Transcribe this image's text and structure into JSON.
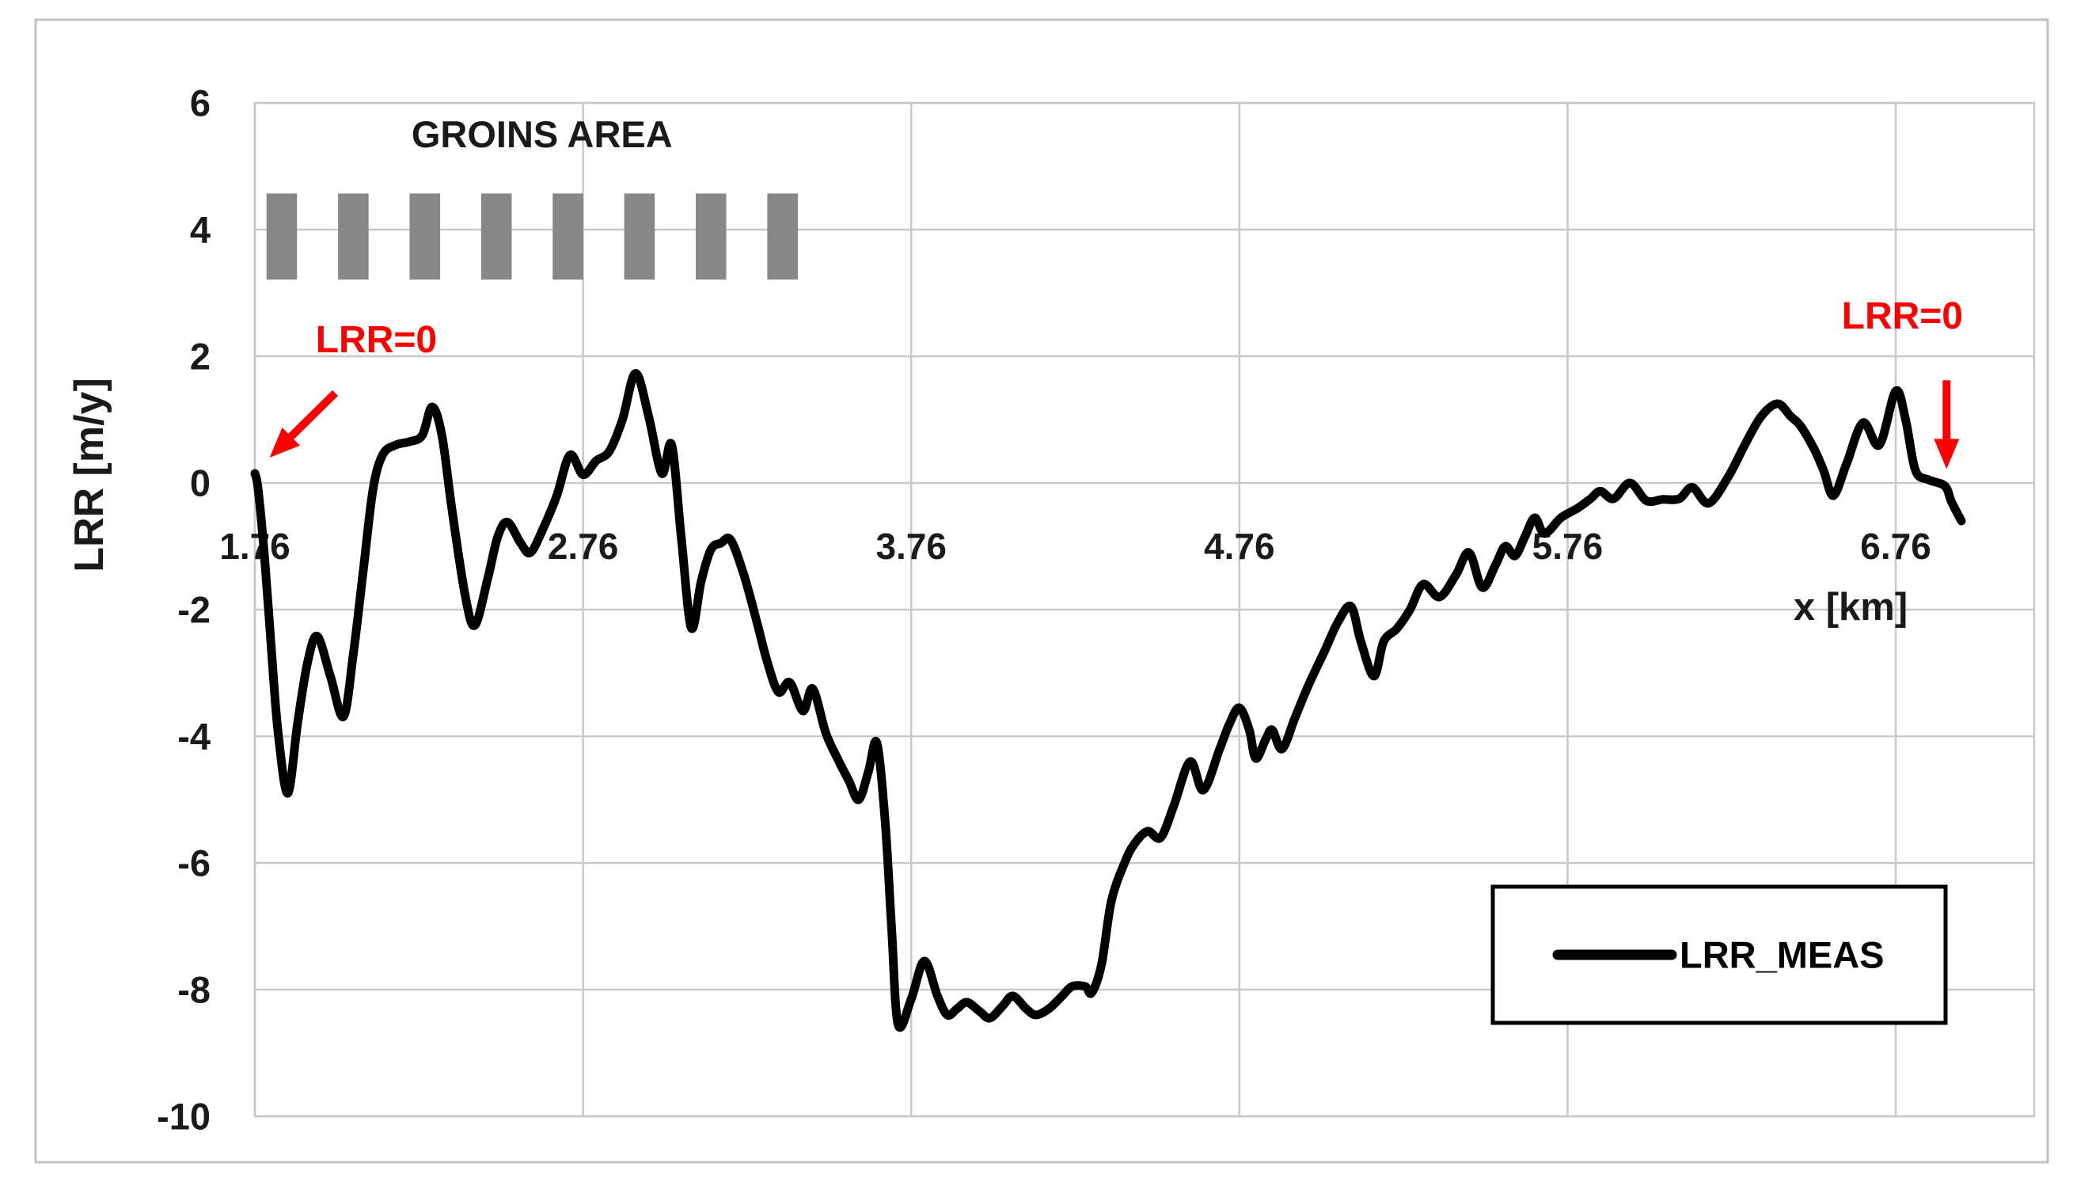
{
  "chart_data": {
    "type": "line",
    "title": "",
    "xlabel": "x [km]",
    "ylabel": "LRR [m/y]",
    "xlim": [
      1.76,
      7.182
    ],
    "ylim": [
      -10,
      6
    ],
    "x_ticks": [
      "1.76",
      "2.76",
      "3.76",
      "4.76",
      "5.76",
      "6.76"
    ],
    "x_tick_values": [
      1.76,
      2.76,
      3.76,
      4.76,
      5.76,
      6.76
    ],
    "y_ticks": [
      "6",
      "4",
      "2",
      "0",
      "-2",
      "-4",
      "-6",
      "-8",
      "-10"
    ],
    "y_tick_values": [
      6,
      4,
      2,
      0,
      -2,
      -4,
      -6,
      -8,
      -10
    ],
    "grid": true,
    "colors": {
      "series": "#000000",
      "gridline": "#c9c9c9",
      "outer_border": "#c2c2c2",
      "groin_bar": "#878787",
      "annotation": "#ff0000",
      "legend_border": "#000000",
      "background": "#ffffff"
    },
    "legend": {
      "label": "LRR_MEAS",
      "position": "bottom-right"
    },
    "groins": {
      "title": "GROINS AREA",
      "bar_centers_km": [
        1.842,
        2.06,
        2.278,
        2.496,
        2.714,
        2.932,
        3.15,
        3.368
      ],
      "bar_width_km": 0.093,
      "bar_top": 4.57,
      "bar_bottom": 3.21
    },
    "annotations": {
      "groins_area": {
        "text": "GROINS AREA",
        "x": 2.635,
        "y": 5.3
      },
      "lrr0_left": {
        "text": "LRR=0",
        "tx": 2.13,
        "ty": 2.06,
        "arrow": {
          "x1": 2.005,
          "y1": 1.42,
          "x2": 1.805,
          "y2": 0.4
        }
      },
      "lrr0_right": {
        "text": "LRR=0",
        "tx": 6.78,
        "ty": 2.44,
        "arrow": {
          "x1": 6.915,
          "y1": 1.62,
          "x2": 6.915,
          "y2": 0.22
        }
      }
    },
    "series": [
      {
        "name": "LRR_MEAS",
        "points": [
          [
            1.76,
            0.15
          ],
          [
            1.77,
            -0.1
          ],
          [
            1.79,
            -1.2
          ],
          [
            1.81,
            -2.6
          ],
          [
            1.83,
            -3.9
          ],
          [
            1.86,
            -4.9
          ],
          [
            1.89,
            -3.8
          ],
          [
            1.92,
            -2.85
          ],
          [
            1.95,
            -2.42
          ],
          [
            1.99,
            -3.05
          ],
          [
            2.03,
            -3.69
          ],
          [
            2.06,
            -2.7
          ],
          [
            2.09,
            -1.4
          ],
          [
            2.12,
            -0.1
          ],
          [
            2.15,
            0.45
          ],
          [
            2.19,
            0.6
          ],
          [
            2.23,
            0.65
          ],
          [
            2.27,
            0.75
          ],
          [
            2.3,
            1.2
          ],
          [
            2.33,
            0.75
          ],
          [
            2.36,
            -0.4
          ],
          [
            2.4,
            -1.75
          ],
          [
            2.43,
            -2.25
          ],
          [
            2.47,
            -1.5
          ],
          [
            2.5,
            -0.85
          ],
          [
            2.53,
            -0.62
          ],
          [
            2.57,
            -0.95
          ],
          [
            2.6,
            -1.1
          ],
          [
            2.64,
            -0.7
          ],
          [
            2.68,
            -0.2
          ],
          [
            2.72,
            0.44
          ],
          [
            2.76,
            0.13
          ],
          [
            2.8,
            0.35
          ],
          [
            2.84,
            0.5
          ],
          [
            2.88,
            1.0
          ],
          [
            2.92,
            1.73
          ],
          [
            2.96,
            1.05
          ],
          [
            3.0,
            0.15
          ],
          [
            3.03,
            0.6
          ],
          [
            3.06,
            -0.9
          ],
          [
            3.09,
            -2.29
          ],
          [
            3.12,
            -1.55
          ],
          [
            3.15,
            -1.05
          ],
          [
            3.18,
            -0.95
          ],
          [
            3.21,
            -0.9
          ],
          [
            3.25,
            -1.45
          ],
          [
            3.29,
            -2.2
          ],
          [
            3.32,
            -2.8
          ],
          [
            3.355,
            -3.3
          ],
          [
            3.39,
            -3.15
          ],
          [
            3.43,
            -3.6
          ],
          [
            3.46,
            -3.25
          ],
          [
            3.5,
            -3.95
          ],
          [
            3.54,
            -4.4
          ],
          [
            3.57,
            -4.7
          ],
          [
            3.6,
            -5.0
          ],
          [
            3.63,
            -4.55
          ],
          [
            3.655,
            -4.1
          ],
          [
            3.68,
            -5.3
          ],
          [
            3.7,
            -7.0
          ],
          [
            3.72,
            -8.55
          ],
          [
            3.76,
            -8.15
          ],
          [
            3.8,
            -7.55
          ],
          [
            3.84,
            -8.1
          ],
          [
            3.87,
            -8.4
          ],
          [
            3.9,
            -8.3
          ],
          [
            3.93,
            -8.2
          ],
          [
            3.97,
            -8.35
          ],
          [
            4.0,
            -8.45
          ],
          [
            4.04,
            -8.25
          ],
          [
            4.07,
            -8.1
          ],
          [
            4.11,
            -8.3
          ],
          [
            4.14,
            -8.4
          ],
          [
            4.18,
            -8.3
          ],
          [
            4.22,
            -8.1
          ],
          [
            4.25,
            -7.95
          ],
          [
            4.29,
            -7.95
          ],
          [
            4.31,
            -8.05
          ],
          [
            4.34,
            -7.6
          ],
          [
            4.37,
            -6.6
          ],
          [
            4.41,
            -6.0
          ],
          [
            4.44,
            -5.7
          ],
          [
            4.48,
            -5.5
          ],
          [
            4.52,
            -5.6
          ],
          [
            4.56,
            -5.1
          ],
          [
            4.61,
            -4.4
          ],
          [
            4.65,
            -4.85
          ],
          [
            4.7,
            -4.2
          ],
          [
            4.73,
            -3.8
          ],
          [
            4.76,
            -3.55
          ],
          [
            4.79,
            -3.9
          ],
          [
            4.81,
            -4.35
          ],
          [
            4.84,
            -4.05
          ],
          [
            4.86,
            -3.9
          ],
          [
            4.89,
            -4.2
          ],
          [
            4.93,
            -3.7
          ],
          [
            4.97,
            -3.2
          ],
          [
            5.02,
            -2.65
          ],
          [
            5.06,
            -2.2
          ],
          [
            5.1,
            -1.95
          ],
          [
            5.13,
            -2.5
          ],
          [
            5.17,
            -3.05
          ],
          [
            5.2,
            -2.5
          ],
          [
            5.24,
            -2.3
          ],
          [
            5.28,
            -2.0
          ],
          [
            5.32,
            -1.6
          ],
          [
            5.37,
            -1.8
          ],
          [
            5.42,
            -1.45
          ],
          [
            5.46,
            -1.1
          ],
          [
            5.5,
            -1.65
          ],
          [
            5.54,
            -1.3
          ],
          [
            5.57,
            -1.0
          ],
          [
            5.6,
            -1.15
          ],
          [
            5.63,
            -0.85
          ],
          [
            5.66,
            -0.55
          ],
          [
            5.69,
            -0.8
          ],
          [
            5.74,
            -0.55
          ],
          [
            5.79,
            -0.4
          ],
          [
            5.83,
            -0.25
          ],
          [
            5.86,
            -0.13
          ],
          [
            5.9,
            -0.25
          ],
          [
            5.95,
            0.0
          ],
          [
            6.0,
            -0.28
          ],
          [
            6.05,
            -0.26
          ],
          [
            6.1,
            -0.25
          ],
          [
            6.14,
            -0.07
          ],
          [
            6.19,
            -0.32
          ],
          [
            6.25,
            0.1
          ],
          [
            6.3,
            0.6
          ],
          [
            6.35,
            1.05
          ],
          [
            6.4,
            1.25
          ],
          [
            6.44,
            1.05
          ],
          [
            6.47,
            0.9
          ],
          [
            6.51,
            0.55
          ],
          [
            6.54,
            0.2
          ],
          [
            6.57,
            -0.2
          ],
          [
            6.61,
            0.3
          ],
          [
            6.66,
            0.95
          ],
          [
            6.71,
            0.6
          ],
          [
            6.76,
            1.45
          ],
          [
            6.79,
            1.0
          ],
          [
            6.82,
            0.2
          ],
          [
            6.86,
            0.05
          ],
          [
            6.91,
            -0.05
          ],
          [
            6.93,
            -0.3
          ],
          [
            6.96,
            -0.6
          ]
        ]
      }
    ]
  }
}
